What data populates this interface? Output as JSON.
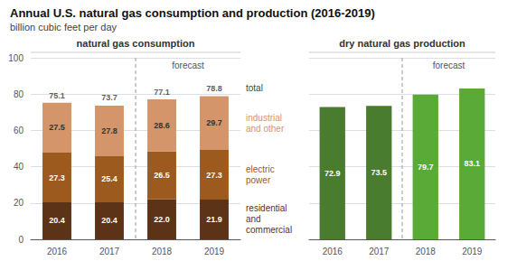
{
  "title": "Annual U.S. natural gas consumption and production (2016-2019)",
  "subtitle": "billion cubic feet per day",
  "chart_data": [
    {
      "type": "bar",
      "title": "natural gas consumption",
      "categories": [
        "2016",
        "2017",
        "2018",
        "2019"
      ],
      "stacked": true,
      "series": [
        {
          "name": "residential\nand\ncommercial",
          "color": "#5c3317",
          "values": [
            20.4,
            20.4,
            22.0,
            21.9
          ],
          "value_labels": [
            "20.4",
            "20.4",
            "22.0",
            "21.9"
          ]
        },
        {
          "name": "electric\npower",
          "color": "#9c5a1e",
          "values": [
            27.3,
            25.4,
            26.5,
            27.3
          ]
        },
        {
          "name": "industrial\nand other",
          "color": "#d4956a",
          "values": [
            27.5,
            27.8,
            28.6,
            29.7
          ]
        }
      ],
      "totals": {
        "name": "total",
        "values": [
          75.1,
          73.7,
          77.1,
          78.8
        ]
      },
      "annotation": {
        "text": "forecast",
        "from": "2018"
      },
      "ylim": [
        0,
        100
      ],
      "yticks": [
        0,
        20,
        40,
        60,
        80,
        100
      ],
      "grid": true,
      "data_labels": true
    },
    {
      "type": "bar",
      "title": "dry natural gas production",
      "categories": [
        "2016",
        "2017",
        "2018",
        "2019"
      ],
      "values": [
        72.9,
        73.5,
        79.7,
        83.1
      ],
      "colors": [
        "#4a7c2f",
        "#4a7c2f",
        "#5aaa38",
        "#5aaa38"
      ],
      "annotation": {
        "text": "forecast",
        "from": "2018"
      },
      "ylim": [
        0,
        100
      ],
      "yticks": [
        0,
        20,
        40,
        60,
        80,
        100
      ],
      "grid": true,
      "data_labels": true,
      "tick_labels": "x"
    }
  ]
}
